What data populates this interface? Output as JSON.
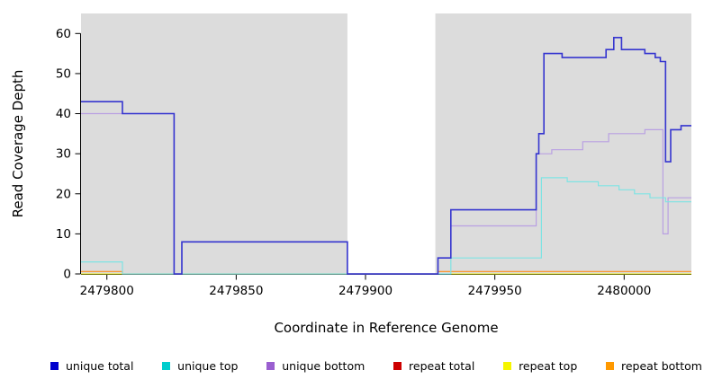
{
  "chart_data": {
    "type": "line",
    "subtype": "step",
    "title": "",
    "xlabel": "Coordinate in Reference Genome",
    "ylabel": "Read Coverage Depth",
    "xlim": [
      2479790,
      2480026
    ],
    "ylim": [
      0,
      65
    ],
    "x_ticks": [
      2479800,
      2479850,
      2479900,
      2479950,
      2480000
    ],
    "y_ticks": [
      0,
      10,
      20,
      30,
      40,
      50,
      60
    ],
    "grid": false,
    "legend_position": "bottom",
    "background_regions": [
      {
        "x0": 2479790,
        "x1": 2479893,
        "color": "#dcdcdc"
      },
      {
        "x0": 2479927,
        "x1": 2480026,
        "color": "#dcdcdc"
      }
    ],
    "series": [
      {
        "name": "repeat total",
        "color": "#cc2222",
        "line_width": 1,
        "points": [
          [
            2479790,
            0
          ]
        ]
      },
      {
        "name": "repeat top",
        "color": "#f2f215",
        "line_width": 1,
        "points": [
          [
            2479790,
            0
          ]
        ]
      },
      {
        "name": "repeat bottom",
        "color": "#ff8c1a",
        "line_width": 1.2,
        "points": [
          [
            2479790,
            0.6
          ],
          [
            2479806,
            0
          ],
          [
            2479928,
            0.6
          ]
        ]
      },
      {
        "name": "unique bottom",
        "color": "#b9a0e2",
        "line_width": 1.2,
        "points": [
          [
            2479790,
            40
          ],
          [
            2479826,
            0
          ],
          [
            2479829,
            8
          ],
          [
            2479893,
            0
          ],
          [
            2479928,
            4
          ],
          [
            2479933,
            12
          ],
          [
            2479966,
            30
          ],
          [
            2479972,
            31
          ],
          [
            2479984,
            33
          ],
          [
            2479994,
            35
          ],
          [
            2480008,
            36
          ],
          [
            2480015,
            10
          ],
          [
            2480017,
            19
          ]
        ]
      },
      {
        "name": "unique top",
        "color": "#7fe3e3",
        "line_width": 1.2,
        "points": [
          [
            2479790,
            3
          ],
          [
            2479806,
            0
          ],
          [
            2479933,
            4
          ],
          [
            2479968,
            24
          ],
          [
            2479978,
            23
          ],
          [
            2479990,
            22
          ],
          [
            2479998,
            21
          ],
          [
            2480004,
            20
          ],
          [
            2480010,
            19
          ],
          [
            2480016,
            18
          ]
        ]
      },
      {
        "name": "unique total",
        "color": "#3535cf",
        "line_width": 1.6,
        "points": [
          [
            2479790,
            43
          ],
          [
            2479806,
            40
          ],
          [
            2479826,
            0
          ],
          [
            2479829,
            8
          ],
          [
            2479893,
            0
          ],
          [
            2479928,
            4
          ],
          [
            2479933,
            16
          ],
          [
            2479966,
            30
          ],
          [
            2479967,
            35
          ],
          [
            2479969,
            55
          ],
          [
            2479976,
            54
          ],
          [
            2479993,
            56
          ],
          [
            2479996,
            59
          ],
          [
            2479999,
            56
          ],
          [
            2480008,
            55
          ],
          [
            2480012,
            54
          ],
          [
            2480014,
            53
          ],
          [
            2480016,
            28
          ],
          [
            2480018,
            36
          ],
          [
            2480022,
            37
          ]
        ]
      }
    ]
  },
  "legend": {
    "items": [
      {
        "label": "unique total",
        "color": "#0000cd"
      },
      {
        "label": "unique top",
        "color": "#00cdcd"
      },
      {
        "label": "unique bottom",
        "color": "#9a5fd0"
      },
      {
        "label": "repeat total",
        "color": "#cd0000"
      },
      {
        "label": "repeat top",
        "color": "#f5f500"
      },
      {
        "label": "repeat bottom",
        "color": "#ff9900"
      }
    ]
  }
}
